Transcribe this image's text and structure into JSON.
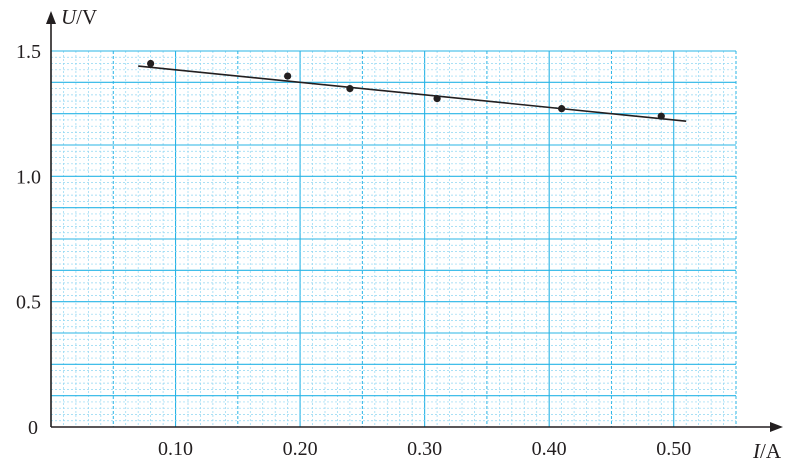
{
  "chart_data": {
    "type": "scatter",
    "xlabel": {
      "var": "I",
      "unit": "/A"
    },
    "ylabel": {
      "var": "U",
      "unit": "/V"
    },
    "xlim": [
      0,
      0.55
    ],
    "ylim": [
      0,
      1.5
    ],
    "xticks": [
      0.1,
      0.2,
      0.3,
      0.4,
      0.5
    ],
    "xtick_labels": [
      "0.10",
      "0.20",
      "0.30",
      "0.40",
      "0.50"
    ],
    "yticks": [
      0.5,
      1.0,
      1.5
    ],
    "ytick_labels": [
      "0.5",
      "1.0",
      "1.5"
    ],
    "origin_label": "0",
    "grid": true,
    "points": [
      {
        "x": 0.08,
        "y": 1.45
      },
      {
        "x": 0.19,
        "y": 1.4
      },
      {
        "x": 0.24,
        "y": 1.35
      },
      {
        "x": 0.31,
        "y": 1.31
      },
      {
        "x": 0.41,
        "y": 1.27
      },
      {
        "x": 0.49,
        "y": 1.24
      }
    ],
    "fit_line": {
      "x": [
        0.07,
        0.51
      ],
      "y": [
        1.44,
        1.22
      ]
    },
    "colors": {
      "grid_major": "#28b4e6",
      "grid_minor": "#8fd6f2",
      "axis": "#231f20",
      "point": "#231f20",
      "line": "#231f20"
    }
  }
}
